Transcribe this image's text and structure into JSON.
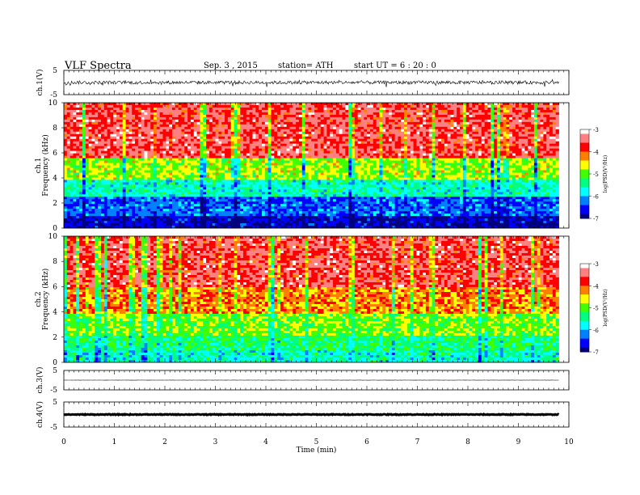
{
  "header": {
    "title": "VLF  Spectra",
    "date": "Sep. 3  , 2015",
    "station": "station= ATH",
    "start": "start  UT  =   6  : 20 : 0"
  },
  "chart_data": [
    {
      "type": "line",
      "panel": "ch1-waveform",
      "ylabel": "ch.1(V)",
      "ylim": [
        -5,
        5
      ],
      "yticks": [
        "5",
        "-5"
      ],
      "xlim": [
        0,
        10
      ],
      "description_values": {
        "center": 0,
        "amplitude_typical": 0.7
      }
    },
    {
      "type": "heatmap",
      "panel": "ch1-spectrogram",
      "ylabel": "ch.1 Frequency  (kHz)",
      "ylim": [
        0,
        10
      ],
      "yticks": [
        "0",
        "2",
        "4",
        "6",
        "8",
        "10"
      ],
      "xlim": [
        0,
        10
      ],
      "data_end_min": 9.8,
      "colorbar": {
        "label": "log(PSD(V²/Hz)",
        "range": [
          -7,
          -3
        ],
        "ticks": [
          "-3",
          "-4",
          "-5",
          "-6",
          "-7"
        ]
      },
      "band_levels": [
        {
          "f_from": 0,
          "f_to": 1,
          "log_psd": -6.8
        },
        {
          "f_from": 1,
          "f_to": 2.5,
          "log_psd": -6.3
        },
        {
          "f_from": 2.5,
          "f_to": 3.8,
          "log_psd": -5.6
        },
        {
          "f_from": 3.8,
          "f_to": 5.5,
          "log_psd": -4.8
        },
        {
          "f_from": 5.5,
          "f_to": 10,
          "log_psd": -3.6
        }
      ]
    },
    {
      "type": "heatmap",
      "panel": "ch2-spectrogram",
      "ylabel": "ch.2 Frequency  (kHz)",
      "ylim": [
        0,
        10
      ],
      "yticks": [
        "0",
        "2",
        "4",
        "6",
        "8",
        "10"
      ],
      "xlim": [
        0,
        10
      ],
      "data_end_min": 9.8,
      "colorbar": {
        "label": "log(PSD(V²/Hz)",
        "range": [
          -7,
          -3
        ],
        "ticks": [
          "-3",
          "-4",
          "-5",
          "-6",
          "-7"
        ]
      },
      "band_levels": [
        {
          "f_from": 0,
          "f_to": 1,
          "log_psd": -5.6
        },
        {
          "f_from": 1,
          "f_to": 2.2,
          "log_psd": -5.3
        },
        {
          "f_from": 2.2,
          "f_to": 3.8,
          "log_psd": -4.9
        },
        {
          "f_from": 3.8,
          "f_to": 6,
          "log_psd": -4.2
        },
        {
          "f_from": 6,
          "f_to": 10,
          "log_psd": -3.6
        }
      ]
    },
    {
      "type": "line",
      "panel": "ch3-waveform",
      "ylabel": "ch.3(V)",
      "ylim": [
        -5,
        5
      ],
      "yticks": [
        "5",
        "-5"
      ],
      "xlim": [
        0,
        10
      ],
      "description_values": {
        "center": 0,
        "amplitude_typical": 0.05
      }
    },
    {
      "type": "line",
      "panel": "ch4-waveform",
      "ylabel": "ch.4(V)",
      "ylim": [
        -5,
        5
      ],
      "yticks": [
        "5",
        "-5"
      ],
      "xlim": [
        0,
        10
      ],
      "description_values": {
        "center": 0,
        "amplitude_typical": 0.15
      }
    }
  ],
  "x_axis": {
    "label": "Time  (min)",
    "ticks": [
      "0",
      "1",
      "2",
      "3",
      "4",
      "5",
      "6",
      "7",
      "8",
      "9",
      "10"
    ]
  },
  "colors": {
    "colormap": [
      "#000080",
      "#0000ff",
      "#0080ff",
      "#00ffff",
      "#00ff80",
      "#40ff00",
      "#ffff00",
      "#ff8000",
      "#ff0000",
      "#ff8080",
      "#ffffff"
    ]
  }
}
